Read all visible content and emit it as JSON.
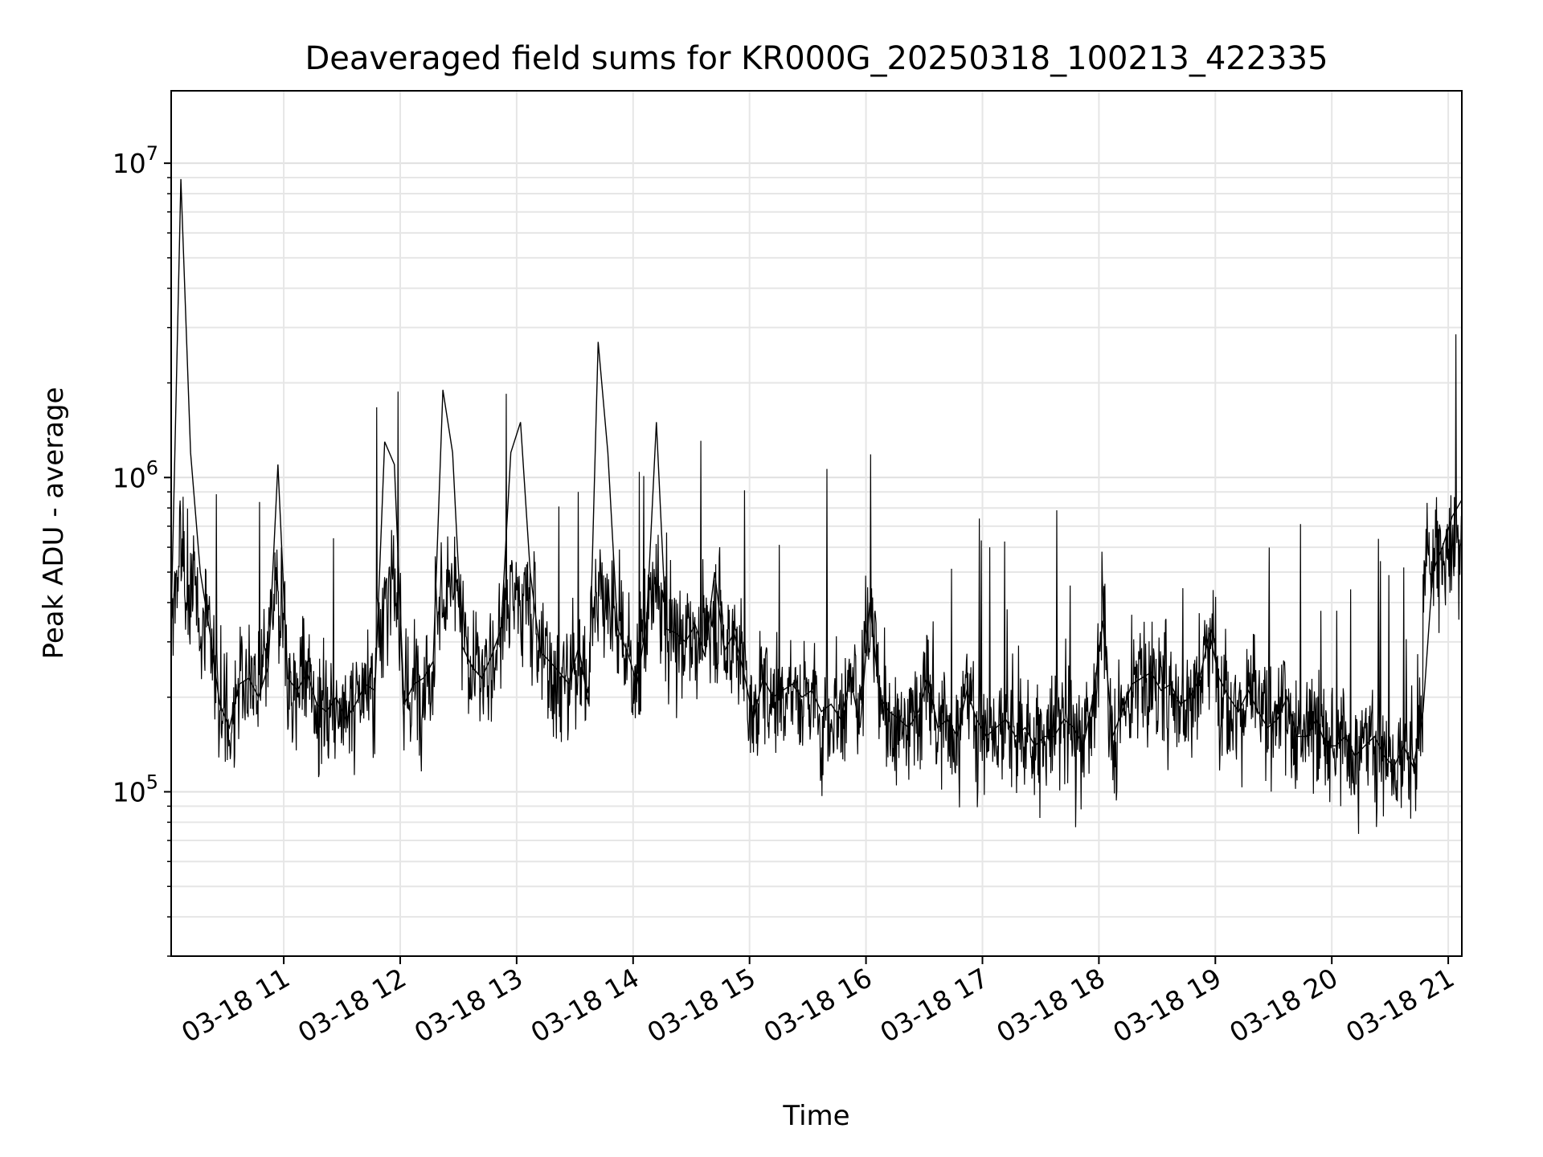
{
  "chart_data": {
    "type": "line",
    "title": "Deaveraged field sums for KR000G_20250318_100213_422335",
    "xlabel": "Time",
    "ylabel": "Peak ADU - average",
    "yscale": "log",
    "ylim": [
      30000,
      17000000
    ],
    "xlim": [
      "03-18 10:02",
      "03-18 21:07"
    ],
    "grid": true,
    "line_color": "#000000",
    "x_ticks": [
      "03-18 11",
      "03-18 12",
      "03-18 13",
      "03-18 14",
      "03-18 15",
      "03-18 16",
      "03-18 17",
      "03-18 18",
      "03-18 19",
      "03-18 20",
      "03-18 21"
    ],
    "y_ticks": [
      {
        "value": 100000,
        "base": "10",
        "exp": "5"
      },
      {
        "value": 1000000,
        "base": "10",
        "exp": "6"
      },
      {
        "value": 10000000,
        "base": "10",
        "exp": "7"
      }
    ],
    "series": [
      {
        "x": [
          "03-18 10:02",
          "03-18 10:07",
          "03-18 10:12",
          "03-18 10:17",
          "03-18 10:22",
          "03-18 10:27",
          "03-18 10:32",
          "03-18 10:37",
          "03-18 10:42",
          "03-18 10:47",
          "03-18 10:52",
          "03-18 10:57",
          "03-18 11:02",
          "03-18 11:07",
          "03-18 11:12",
          "03-18 11:17",
          "03-18 11:22",
          "03-18 11:27",
          "03-18 11:32",
          "03-18 11:37",
          "03-18 11:42",
          "03-18 11:47",
          "03-18 11:52",
          "03-18 11:57",
          "03-18 12:02",
          "03-18 12:07",
          "03-18 12:12",
          "03-18 12:17",
          "03-18 12:22",
          "03-18 12:27",
          "03-18 12:32",
          "03-18 12:37",
          "03-18 12:42",
          "03-18 12:47",
          "03-18 12:52",
          "03-18 12:57",
          "03-18 13:02",
          "03-18 13:07",
          "03-18 13:12",
          "03-18 13:17",
          "03-18 13:22",
          "03-18 13:27",
          "03-18 13:32",
          "03-18 13:37",
          "03-18 13:42",
          "03-18 13:47",
          "03-18 13:52",
          "03-18 13:57",
          "03-18 14:02",
          "03-18 14:07",
          "03-18 14:12",
          "03-18 14:17",
          "03-18 14:22",
          "03-18 14:27",
          "03-18 14:32",
          "03-18 14:37",
          "03-18 14:42",
          "03-18 14:47",
          "03-18 14:52",
          "03-18 14:57",
          "03-18 15:02",
          "03-18 15:07",
          "03-18 15:12",
          "03-18 15:17",
          "03-18 15:22",
          "03-18 15:27",
          "03-18 15:32",
          "03-18 15:37",
          "03-18 15:42",
          "03-18 15:47",
          "03-18 15:52",
          "03-18 15:57",
          "03-18 16:02",
          "03-18 16:07",
          "03-18 16:12",
          "03-18 16:17",
          "03-18 16:22",
          "03-18 16:27",
          "03-18 16:32",
          "03-18 16:37",
          "03-18 16:42",
          "03-18 16:47",
          "03-18 16:52",
          "03-18 16:57",
          "03-18 17:02",
          "03-18 17:07",
          "03-18 17:12",
          "03-18 17:17",
          "03-18 17:22",
          "03-18 17:27",
          "03-18 17:32",
          "03-18 17:37",
          "03-18 17:42",
          "03-18 17:47",
          "03-18 17:52",
          "03-18 17:57",
          "03-18 18:02",
          "03-18 18:07",
          "03-18 18:12",
          "03-18 18:17",
          "03-18 18:22",
          "03-18 18:27",
          "03-18 18:32",
          "03-18 18:37",
          "03-18 18:42",
          "03-18 18:47",
          "03-18 18:52",
          "03-18 18:57",
          "03-18 19:02",
          "03-18 19:07",
          "03-18 19:12",
          "03-18 19:17",
          "03-18 19:22",
          "03-18 19:27",
          "03-18 19:32",
          "03-18 19:37",
          "03-18 19:42",
          "03-18 19:47",
          "03-18 19:52",
          "03-18 19:57",
          "03-18 20:02",
          "03-18 20:07",
          "03-18 20:12",
          "03-18 20:17",
          "03-18 20:22",
          "03-18 20:27",
          "03-18 20:32",
          "03-18 20:37",
          "03-18 20:42",
          "03-18 20:47",
          "03-18 20:52",
          "03-18 20:57",
          "03-18 21:02",
          "03-18 21:07"
        ],
        "y": [
          350000,
          8900000,
          1200000,
          500000,
          320000,
          190000,
          160000,
          220000,
          230000,
          200000,
          250000,
          1100000,
          230000,
          210000,
          240000,
          190000,
          180000,
          200000,
          170000,
          190000,
          220000,
          210000,
          1300000,
          1100000,
          190000,
          220000,
          230000,
          260000,
          1900000,
          1200000,
          290000,
          250000,
          230000,
          270000,
          330000,
          1200000,
          1500000,
          500000,
          280000,
          260000,
          240000,
          220000,
          290000,
          190000,
          2700000,
          1200000,
          330000,
          280000,
          220000,
          350000,
          1500000,
          330000,
          320000,
          300000,
          340000,
          270000,
          500000,
          280000,
          320000,
          240000,
          170000,
          230000,
          200000,
          210000,
          220000,
          200000,
          210000,
          180000,
          190000,
          170000,
          230000,
          160000,
          400000,
          200000,
          180000,
          170000,
          160000,
          180000,
          230000,
          160000,
          170000,
          150000,
          210000,
          170000,
          150000,
          160000,
          170000,
          150000,
          160000,
          140000,
          150000,
          150000,
          170000,
          160000,
          140000,
          200000,
          350000,
          150000,
          180000,
          220000,
          230000,
          240000,
          210000,
          220000,
          190000,
          200000,
          230000,
          320000,
          230000,
          200000,
          180000,
          210000,
          180000,
          160000,
          170000,
          200000,
          150000,
          150000,
          170000,
          140000,
          140000,
          150000,
          130000,
          140000,
          150000,
          130000,
          120000,
          140000,
          120000,
          180000,
          500000,
          600000,
          750000,
          850000
        ]
      }
    ]
  }
}
